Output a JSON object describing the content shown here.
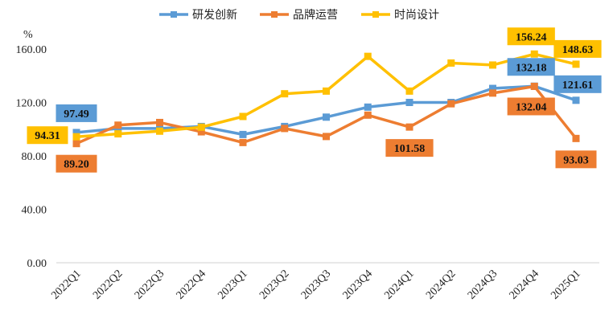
{
  "chart_data": {
    "type": "line",
    "ylabel": "%",
    "ylim": [
      0,
      160
    ],
    "yticks": [
      "0.00",
      "40.00",
      "80.00",
      "120.00",
      "160.00"
    ],
    "grid": false,
    "legend_position": "top",
    "categories": [
      "2022Q1",
      "2022Q2",
      "2022Q3",
      "2022Q4",
      "2023Q1",
      "2023Q2",
      "2023Q3",
      "2023Q4",
      "2024Q1",
      "2024Q2",
      "2024Q3",
      "2024Q4",
      "2025Q1"
    ],
    "series": [
      {
        "name": "研发创新",
        "color": "#5B9BD5",
        "values": [
          97.49,
          100.5,
          100.5,
          102,
          96,
          102,
          109,
          116.5,
          120,
          120,
          130.5,
          132.18,
          121.61
        ],
        "labels": [
          {
            "index": 0,
            "text": "97.49"
          },
          {
            "index": 11,
            "text": "132.18"
          },
          {
            "index": 12,
            "text": "121.61"
          }
        ]
      },
      {
        "name": "品牌运营",
        "color": "#ED7D31",
        "values": [
          89.2,
          103,
          105,
          98,
          90,
          100.5,
          94.5,
          110.5,
          101.58,
          119,
          127,
          132.04,
          93.03
        ],
        "labels": [
          {
            "index": 0,
            "text": "89.20"
          },
          {
            "index": 8,
            "text": "101.58"
          },
          {
            "index": 11,
            "text": "132.04"
          },
          {
            "index": 12,
            "text": "93.03"
          }
        ]
      },
      {
        "name": "时尚设计",
        "color": "#FFC000",
        "values": [
          94.31,
          96.5,
          98.5,
          101.5,
          109.5,
          126.5,
          128.5,
          154.5,
          128.5,
          149.5,
          148,
          156.24,
          148.63
        ],
        "labels": [
          {
            "index": 0,
            "text": "94.31"
          },
          {
            "index": 11,
            "text": "156.24"
          },
          {
            "index": 12,
            "text": "148.63"
          }
        ]
      }
    ]
  }
}
